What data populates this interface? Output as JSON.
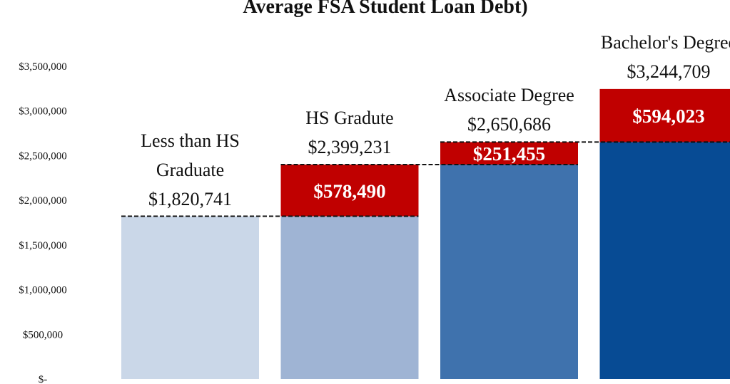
{
  "chart_data": {
    "type": "bar",
    "stacked": true,
    "title": "Average FSA Student Loan Debt)",
    "categories": [
      "Less than HS Graduate",
      "HS Gradute",
      "Associate Degree",
      "Bachelor's Degree"
    ],
    "totals": [
      1820741,
      2399231,
      2650686,
      3244709
    ],
    "total_labels": [
      "$1,820,741",
      "$2,399,231",
      "$2,650,686",
      "$3,244,709"
    ],
    "series": [
      {
        "colors": [
          "#cad7e8",
          "#9fb4d4",
          "#3f72ad",
          "#074b94"
        ],
        "values": [
          1820741,
          1820741,
          2399231,
          2650686
        ]
      },
      {
        "color": "#c00000",
        "values": [
          null,
          578490,
          251455,
          594023
        ],
        "value_labels": [
          null,
          "$578,490",
          "$251,455",
          "$594,023"
        ]
      }
    ],
    "ylim": [
      0,
      4240000
    ],
    "yticks": [
      {
        "value": 0,
        "label": "$-"
      },
      {
        "value": 500000,
        "label": "$500,000"
      },
      {
        "value": 1000000,
        "label": "$1,000,000"
      },
      {
        "value": 1500000,
        "label": "$1,500,000"
      },
      {
        "value": 2000000,
        "label": "$2,000,000"
      },
      {
        "value": 2500000,
        "label": "$2,500,000"
      },
      {
        "value": 3000000,
        "label": "$3,000,000"
      },
      {
        "value": 3500000,
        "label": "$3,500,000"
      }
    ]
  }
}
